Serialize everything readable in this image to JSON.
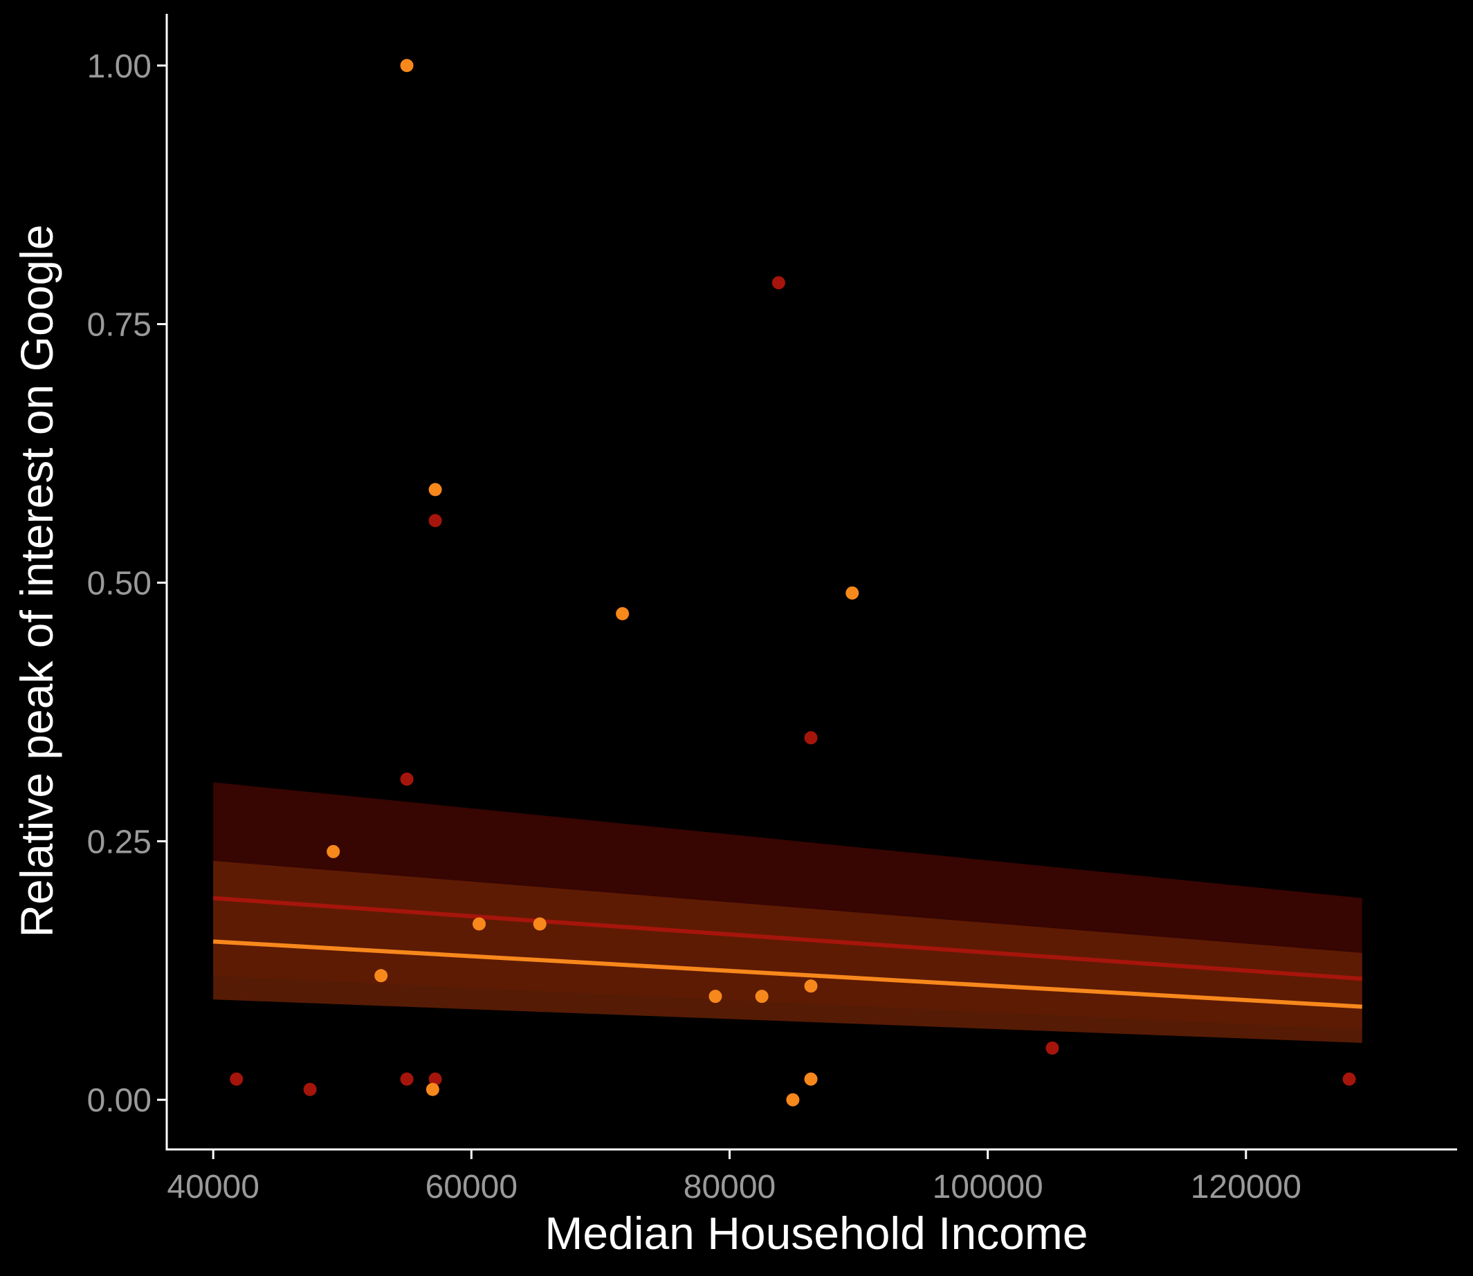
{
  "chart_data": {
    "type": "scatter",
    "title": "",
    "xlabel": "Median Household Income",
    "ylabel": "Relative peak of interest on Google",
    "xlim": [
      36400,
      131800
    ],
    "ylim": [
      -0.048,
      1.05
    ],
    "xticks": [
      40000,
      60000,
      80000,
      100000,
      120000
    ],
    "xtick_labels": [
      "40000",
      "60000",
      "80000",
      "100000",
      "120000"
    ],
    "yticks": [
      0,
      0.25,
      0.5,
      0.75,
      1.0
    ],
    "ytick_labels": [
      "0.00",
      "0.25",
      "0.50",
      "0.75",
      "1.00"
    ],
    "grid": false,
    "legend": "none",
    "background": "#000000",
    "axis_color": "#ffffff",
    "series": [
      {
        "color": "#a6150b",
        "fit_line_color": "#a6150b",
        "band_color": "#3a0502",
        "fit": {
          "x0": 40000,
          "y0": 0.195,
          "x1": 129000,
          "y1": 0.117
        },
        "band": {
          "x0": 40000,
          "lo0": 0.12,
          "hi0": 0.307,
          "x1": 129000,
          "lo1": 0.068,
          "hi1": 0.195
        },
        "points": [
          {
            "x": 41800,
            "y": 0.02
          },
          {
            "x": 47500,
            "y": 0.01
          },
          {
            "x": 55000,
            "y": 0.31
          },
          {
            "x": 55000,
            "y": 0.02
          },
          {
            "x": 57200,
            "y": 0.56
          },
          {
            "x": 57200,
            "y": 0.02
          },
          {
            "x": 83800,
            "y": 0.79
          },
          {
            "x": 86300,
            "y": 0.35
          },
          {
            "x": 105000,
            "y": 0.05
          },
          {
            "x": 128000,
            "y": 0.02
          }
        ]
      },
      {
        "color": "#f7881c",
        "fit_line_color": "#f7881c",
        "band_color": "#652005",
        "fit": {
          "x0": 40000,
          "y0": 0.153,
          "x1": 129000,
          "y1": 0.09
        },
        "band": {
          "x0": 40000,
          "lo0": 0.097,
          "hi0": 0.231,
          "x1": 129000,
          "lo1": 0.055,
          "hi1": 0.142
        },
        "points": [
          {
            "x": 55000,
            "y": 1.0
          },
          {
            "x": 57200,
            "y": 0.59
          },
          {
            "x": 49300,
            "y": 0.24
          },
          {
            "x": 53000,
            "y": 0.12
          },
          {
            "x": 57000,
            "y": 0.01
          },
          {
            "x": 60600,
            "y": 0.17
          },
          {
            "x": 65300,
            "y": 0.17
          },
          {
            "x": 71700,
            "y": 0.47
          },
          {
            "x": 78900,
            "y": 0.1
          },
          {
            "x": 82500,
            "y": 0.1
          },
          {
            "x": 84900,
            "y": 0.0
          },
          {
            "x": 86300,
            "y": 0.11
          },
          {
            "x": 86300,
            "y": 0.02
          },
          {
            "x": 89500,
            "y": 0.49
          }
        ]
      }
    ]
  }
}
